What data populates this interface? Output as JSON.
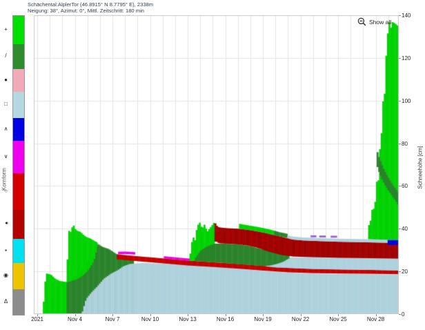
{
  "header": {
    "title_line1": "Schächental:AlplerTor (46.8915° N 8.7795° E), 2338m",
    "title_line2": "Neigung: 38°, Azimut: 0°, Mittl. Zeitschritt: 180 min"
  },
  "toolbar": {
    "show_all_label": "Show all"
  },
  "legend": {
    "axis_label": "Kornform",
    "items": [
      {
        "name": "new-snow",
        "symbol": "+",
        "color": "#00e000",
        "px": 41
      },
      {
        "name": "decomposing-fragments",
        "symbol": "/",
        "color": "#2e8b2e",
        "px": 36
      },
      {
        "name": "rounded-grains",
        "symbol": "●",
        "color": "#f2a9b8",
        "px": 33
      },
      {
        "name": "faceted-crystals",
        "symbol": "□",
        "color": "#b4d7e2",
        "px": 38
      },
      {
        "name": "depth-hoar",
        "symbol": "∧",
        "color": "#0000e0",
        "px": 33
      },
      {
        "name": "surface-hoar",
        "symbol": "∨",
        "color": "#ee00ee",
        "px": 47
      },
      {
        "name": "melt-forms",
        "symbol": "○",
        "color": "#d40000",
        "px": 53
      },
      {
        "name": "melt-freeze-crust",
        "symbol": "●○",
        "color": "#b30000",
        "px": 42,
        "hatched": true
      },
      {
        "name": "ice-formations",
        "symbol": "▪",
        "color": "#00e0ee",
        "px": 35
      },
      {
        "name": "graupel",
        "symbol": "◉",
        "color": "#eec400",
        "px": 38
      },
      {
        "name": "unknown-form",
        "symbol": "Δ",
        "color": "#8c8c8c",
        "px": 37
      }
    ]
  },
  "chart_data": {
    "type": "area",
    "title": "Schächental:AlplerTor (46.8915° N 8.7795° E), 2338m",
    "subtitle": "Neigung: 38°, Azimut: 0°, Mittl. Zeitschritt: 180 min",
    "x_axis": {
      "unit": "days since 2021-11-01",
      "range_days": [
        0,
        28.84
      ],
      "ticks": [
        {
          "label": "2021",
          "day": 0
        },
        {
          "label": "Nov 4",
          "day": 3
        },
        {
          "label": "Nov 7",
          "day": 6
        },
        {
          "label": "Nov 10",
          "day": 9
        },
        {
          "label": "Nov 13",
          "day": 12
        },
        {
          "label": "Nov 16",
          "day": 15
        },
        {
          "label": "Nov 19",
          "day": 18
        },
        {
          "label": "Nov 22",
          "day": 21
        },
        {
          "label": "Nov 25",
          "day": 24
        },
        {
          "label": "Nov 28",
          "day": 27
        }
      ]
    },
    "y_axis": {
      "label": "Schneehöhe [cm]",
      "ticks": [
        0,
        20,
        40,
        60,
        80,
        100,
        120,
        140
      ],
      "range": [
        0,
        140
      ]
    },
    "grid": true,
    "legend_position": "left",
    "layers": [
      {
        "name": "storm1-new-snow",
        "grain_type": "PP",
        "color": "#00dc00",
        "edge": "rgba(0,90,0,0.28)",
        "pts": [
          [
            0.45,
            0,
            0
          ],
          [
            0.6,
            0,
            14
          ],
          [
            0.75,
            0,
            19
          ],
          [
            1.1,
            0,
            18.5
          ],
          [
            1.45,
            0,
            16.5
          ],
          [
            1.8,
            0,
            15.5
          ],
          [
            2.35,
            0,
            15
          ]
        ]
      },
      {
        "name": "storm1-decomposing",
        "grain_type": "DF",
        "color": "#2e8b2e",
        "edge": "rgba(0,45,0,0.3)",
        "pts": [
          [
            2.35,
            0,
            15
          ],
          [
            2.8,
            0,
            16
          ],
          [
            3.3,
            0,
            19
          ],
          [
            3.9,
            0,
            23.5
          ],
          [
            4.4,
            0,
            28
          ],
          [
            4.8,
            0,
            33
          ],
          [
            5.2,
            0,
            31.5
          ],
          [
            5.7,
            0,
            30.5
          ],
          [
            6.35,
            0,
            28
          ],
          [
            7.0,
            0,
            26.5
          ],
          [
            7.7,
            0,
            25.5
          ]
        ]
      },
      {
        "name": "storm2-new-snow",
        "grain_type": "PP",
        "color": "#00dc00",
        "edge": "rgba(0,90,0,0.28)",
        "pts": [
          [
            2.35,
            15,
            15
          ],
          [
            2.45,
            15,
            32
          ],
          [
            2.55,
            15.2,
            40
          ],
          [
            2.7,
            15.5,
            38
          ],
          [
            2.85,
            15.8,
            42.5
          ],
          [
            3.0,
            16,
            40
          ],
          [
            3.2,
            16.5,
            39
          ],
          [
            3.45,
            17.5,
            38.5
          ],
          [
            3.7,
            18.5,
            37
          ],
          [
            3.95,
            20,
            36
          ],
          [
            4.2,
            22,
            35.5
          ],
          [
            4.5,
            25,
            34.5
          ],
          [
            4.8,
            32,
            33.5
          ]
        ]
      },
      {
        "name": "basal-facets",
        "grain_type": "FC",
        "color": "#b4d7e2",
        "edge": "rgba(90,130,150,0.22)",
        "pts": [
          [
            3.55,
            0,
            0
          ],
          [
            3.9,
            0,
            7
          ],
          [
            4.3,
            0,
            10
          ],
          [
            4.8,
            0,
            13
          ],
          [
            5.3,
            0,
            16.5
          ],
          [
            5.9,
            0,
            19
          ],
          [
            6.4,
            0,
            20.5
          ],
          [
            6.9,
            0,
            22.5
          ],
          [
            7.4,
            0,
            23.5
          ],
          [
            8.5,
            0,
            24
          ],
          [
            10.5,
            0,
            23.5
          ],
          [
            12.1,
            0,
            23
          ],
          [
            13.5,
            0,
            22.5
          ],
          [
            15.5,
            0,
            21.5
          ],
          [
            17.5,
            0,
            20.5
          ],
          [
            19.5,
            0,
            19.6
          ],
          [
            22,
            0,
            19
          ],
          [
            25,
            0,
            18.8
          ],
          [
            28.84,
            0,
            18.5
          ]
        ]
      },
      {
        "name": "old-melt-crust",
        "grain_type": "MF",
        "color": "#d40000",
        "edge": "rgba(70,0,0,0.45)",
        "pts": [
          [
            6.35,
            25.7,
            28
          ],
          [
            8,
            24.8,
            27.1
          ],
          [
            10,
            23.8,
            26.1
          ],
          [
            12,
            22.8,
            25.1
          ],
          [
            14,
            22.1,
            24.3
          ],
          [
            16,
            21.3,
            23.5
          ],
          [
            18,
            20.4,
            22.6
          ],
          [
            20,
            19.6,
            21.7
          ],
          [
            22,
            19.2,
            21.2
          ],
          [
            24.5,
            19,
            20.9
          ],
          [
            26.5,
            18.9,
            20.7
          ],
          [
            28.84,
            18.7,
            20.5
          ]
        ]
      },
      {
        "name": "surface-hoar-a",
        "grain_type": "SH",
        "color": "#e800e8",
        "edge": null,
        "pts": [
          [
            6.45,
            28,
            29.2
          ],
          [
            7.0,
            28.15,
            29.3
          ],
          [
            7.8,
            27.9,
            29.0
          ]
        ]
      },
      {
        "name": "surface-hoar-b",
        "grain_type": "SH",
        "color": "#e800e8",
        "edge": null,
        "pts": [
          [
            10.1,
            26.05,
            27.1
          ],
          [
            11.0,
            25.6,
            26.6
          ],
          [
            12.15,
            25.0,
            26.0
          ]
        ]
      },
      {
        "name": "mid-facets",
        "grain_type": "FC",
        "color": "#b4d7e2",
        "edge": "rgba(90,130,150,0.22)",
        "pts": [
          [
            18.3,
            22.3,
            24
          ],
          [
            19.1,
            21.8,
            25
          ],
          [
            19.7,
            21.7,
            26.5
          ],
          [
            20.4,
            21.5,
            26.6
          ],
          [
            22,
            21.1,
            26.5
          ],
          [
            24,
            20.9,
            26.4
          ],
          [
            26.5,
            20.7,
            26.2
          ],
          [
            28.84,
            20.4,
            26.0
          ]
        ]
      },
      {
        "name": "storm3-new-snow",
        "grain_type": "PP",
        "color": "#00dc00",
        "edge": "rgba(0,90,0,0.28)",
        "pts": [
          [
            12.15,
            25,
            25
          ],
          [
            12.3,
            25,
            33
          ],
          [
            12.45,
            24.9,
            36
          ],
          [
            12.6,
            24.9,
            34.5
          ],
          [
            12.75,
            24.8,
            41
          ],
          [
            12.95,
            24.7,
            43
          ],
          [
            13.15,
            24.7,
            40
          ],
          [
            13.35,
            24.6,
            42
          ],
          [
            13.55,
            24.5,
            38.5
          ],
          [
            13.8,
            24.4,
            40.5
          ],
          [
            14.0,
            24.3,
            42
          ],
          [
            14.15,
            24.3,
            43.2
          ]
        ]
      },
      {
        "name": "storm3-decomposing",
        "grain_type": "DF",
        "color": "#2e8b2e",
        "edge": "rgba(0,45,0,0.3)",
        "pts": [
          [
            12.6,
            24.9,
            26
          ],
          [
            13.0,
            24.7,
            29.5
          ],
          [
            13.5,
            24.5,
            31.5
          ],
          [
            14.15,
            24.3,
            33
          ],
          [
            15,
            23.9,
            33
          ],
          [
            16,
            23.4,
            32.7
          ],
          [
            17,
            23.0,
            31.8
          ],
          [
            18,
            22.5,
            30.2
          ],
          [
            18.6,
            22.8,
            29.7
          ],
          [
            19.1,
            23.5,
            28.6
          ],
          [
            19.6,
            24.5,
            28.2
          ],
          [
            20.1,
            26.2,
            27.8
          ]
        ]
      },
      {
        "name": "melt-freeze-crust-band",
        "grain_type": "MFcr",
        "color": "#cc0000",
        "edge": "rgba(45,0,0,0.6)",
        "hatch": true,
        "pts": [
          [
            14.15,
            34,
            43.2
          ],
          [
            14.3,
            34,
            41.5
          ],
          [
            14.5,
            33.2,
            40.6
          ],
          [
            15.2,
            33,
            40.2
          ],
          [
            16,
            32.7,
            40
          ],
          [
            16.8,
            32.1,
            39.5
          ],
          [
            17.5,
            31.2,
            38.8
          ],
          [
            18.2,
            29.8,
            38
          ],
          [
            18.9,
            28.6,
            37
          ],
          [
            19.6,
            27.6,
            36
          ],
          [
            20.4,
            27.0,
            34.9
          ],
          [
            21.2,
            26.8,
            34.5
          ],
          [
            22.5,
            26.6,
            34.2
          ],
          [
            24,
            26.4,
            33.9
          ],
          [
            26.5,
            26.2,
            33.6
          ],
          [
            28.84,
            26.0,
            33.3
          ]
        ]
      },
      {
        "name": "crust-top-new-snow",
        "grain_type": "PP",
        "color": "#00dc00",
        "edge": "rgba(0,90,0,0.28)",
        "pts": [
          [
            16.1,
            40,
            42.3
          ],
          [
            16.8,
            39.5,
            41.6
          ],
          [
            17.5,
            38.8,
            40.9
          ],
          [
            18.2,
            38,
            40.1
          ],
          [
            18.9,
            37,
            39.1
          ]
        ]
      },
      {
        "name": "crust-top-decomposing",
        "grain_type": "DF",
        "color": "#2e8b2e",
        "edge": "rgba(0,45,0,0.3)",
        "pts": [
          [
            18.9,
            37,
            39.1
          ],
          [
            19.3,
            36.4,
            38.4
          ],
          [
            19.95,
            35.7,
            37.6
          ]
        ]
      },
      {
        "name": "crust-top-facet-skin",
        "grain_type": "FC",
        "color": "#b4d7e2",
        "edge": "rgba(90,130,150,0.22)",
        "pts": [
          [
            19.95,
            35.7,
            36.9
          ],
          [
            20.4,
            34.9,
            36.3
          ],
          [
            21.2,
            34.5,
            35.9
          ],
          [
            22.5,
            34.2,
            35.6
          ],
          [
            24,
            33.9,
            35.3
          ],
          [
            26.5,
            33.6,
            35.1
          ],
          [
            28.84,
            33.3,
            34.8
          ]
        ]
      },
      {
        "name": "surface-hoar-dash-1",
        "grain_type": "SH",
        "color": "#9b5fd0",
        "edge": null,
        "pts": [
          [
            21.8,
            36.0,
            36.9
          ],
          [
            22.25,
            36.0,
            36.9
          ]
        ]
      },
      {
        "name": "surface-hoar-dash-2",
        "grain_type": "SH",
        "color": "#9b5fd0",
        "edge": null,
        "pts": [
          [
            22.5,
            35.9,
            36.8
          ],
          [
            23.0,
            35.9,
            36.8
          ]
        ]
      },
      {
        "name": "surface-hoar-dash-3",
        "grain_type": "SH",
        "color": "#9b5fd0",
        "edge": null,
        "pts": [
          [
            23.4,
            35.8,
            36.7
          ],
          [
            23.9,
            35.8,
            36.7
          ]
        ]
      },
      {
        "name": "storm4-new-snow",
        "grain_type": "PP",
        "color": "#00dc00",
        "edge": "rgba(0,90,0,0.28)",
        "pts": [
          [
            26.4,
            35.1,
            35.1
          ],
          [
            26.45,
            35.1,
            41.5
          ],
          [
            26.6,
            35.1,
            44
          ],
          [
            26.75,
            35.0,
            50.5
          ],
          [
            26.9,
            35.0,
            48.5
          ],
          [
            27.0,
            35.0,
            55
          ],
          [
            27.1,
            35.0,
            63
          ],
          [
            27.2,
            35.0,
            60.5
          ],
          [
            27.3,
            34.9,
            78
          ],
          [
            27.4,
            34.9,
            76
          ],
          [
            27.5,
            34.9,
            90
          ],
          [
            27.6,
            34.9,
            101
          ],
          [
            27.65,
            34.9,
            105
          ],
          [
            27.72,
            34.9,
            103
          ],
          [
            27.8,
            34.9,
            118
          ],
          [
            27.9,
            34.8,
            126
          ],
          [
            27.98,
            34.8,
            133
          ],
          [
            28.08,
            34.8,
            137
          ],
          [
            28.18,
            34.8,
            132.5
          ],
          [
            28.28,
            34.8,
            137.5
          ],
          [
            28.4,
            34.8,
            136
          ],
          [
            28.55,
            34.8,
            137
          ],
          [
            28.65,
            34.8,
            134
          ],
          [
            28.78,
            34.8,
            136.5
          ],
          [
            28.84,
            34.8,
            135
          ]
        ]
      },
      {
        "name": "storm4-decomposing-band",
        "grain_type": "DF",
        "color": "#2e8b2e",
        "edge": "rgba(0,45,0,0.3)",
        "pts": [
          [
            27.08,
            70,
            77
          ],
          [
            27.3,
            66,
            73
          ],
          [
            27.6,
            62,
            68.5
          ],
          [
            27.95,
            58.5,
            64.5
          ],
          [
            28.3,
            55.5,
            61
          ],
          [
            28.6,
            53,
            58.5
          ],
          [
            28.84,
            50.5,
            56.5
          ]
        ]
      },
      {
        "name": "buried-depth-hoar",
        "grain_type": "DH",
        "color": "#0000e0",
        "edge": null,
        "pts": [
          [
            27.95,
            32.4,
            34.7
          ],
          [
            28.4,
            32.4,
            34.7
          ],
          [
            28.84,
            32.4,
            34.7
          ]
        ]
      }
    ]
  }
}
